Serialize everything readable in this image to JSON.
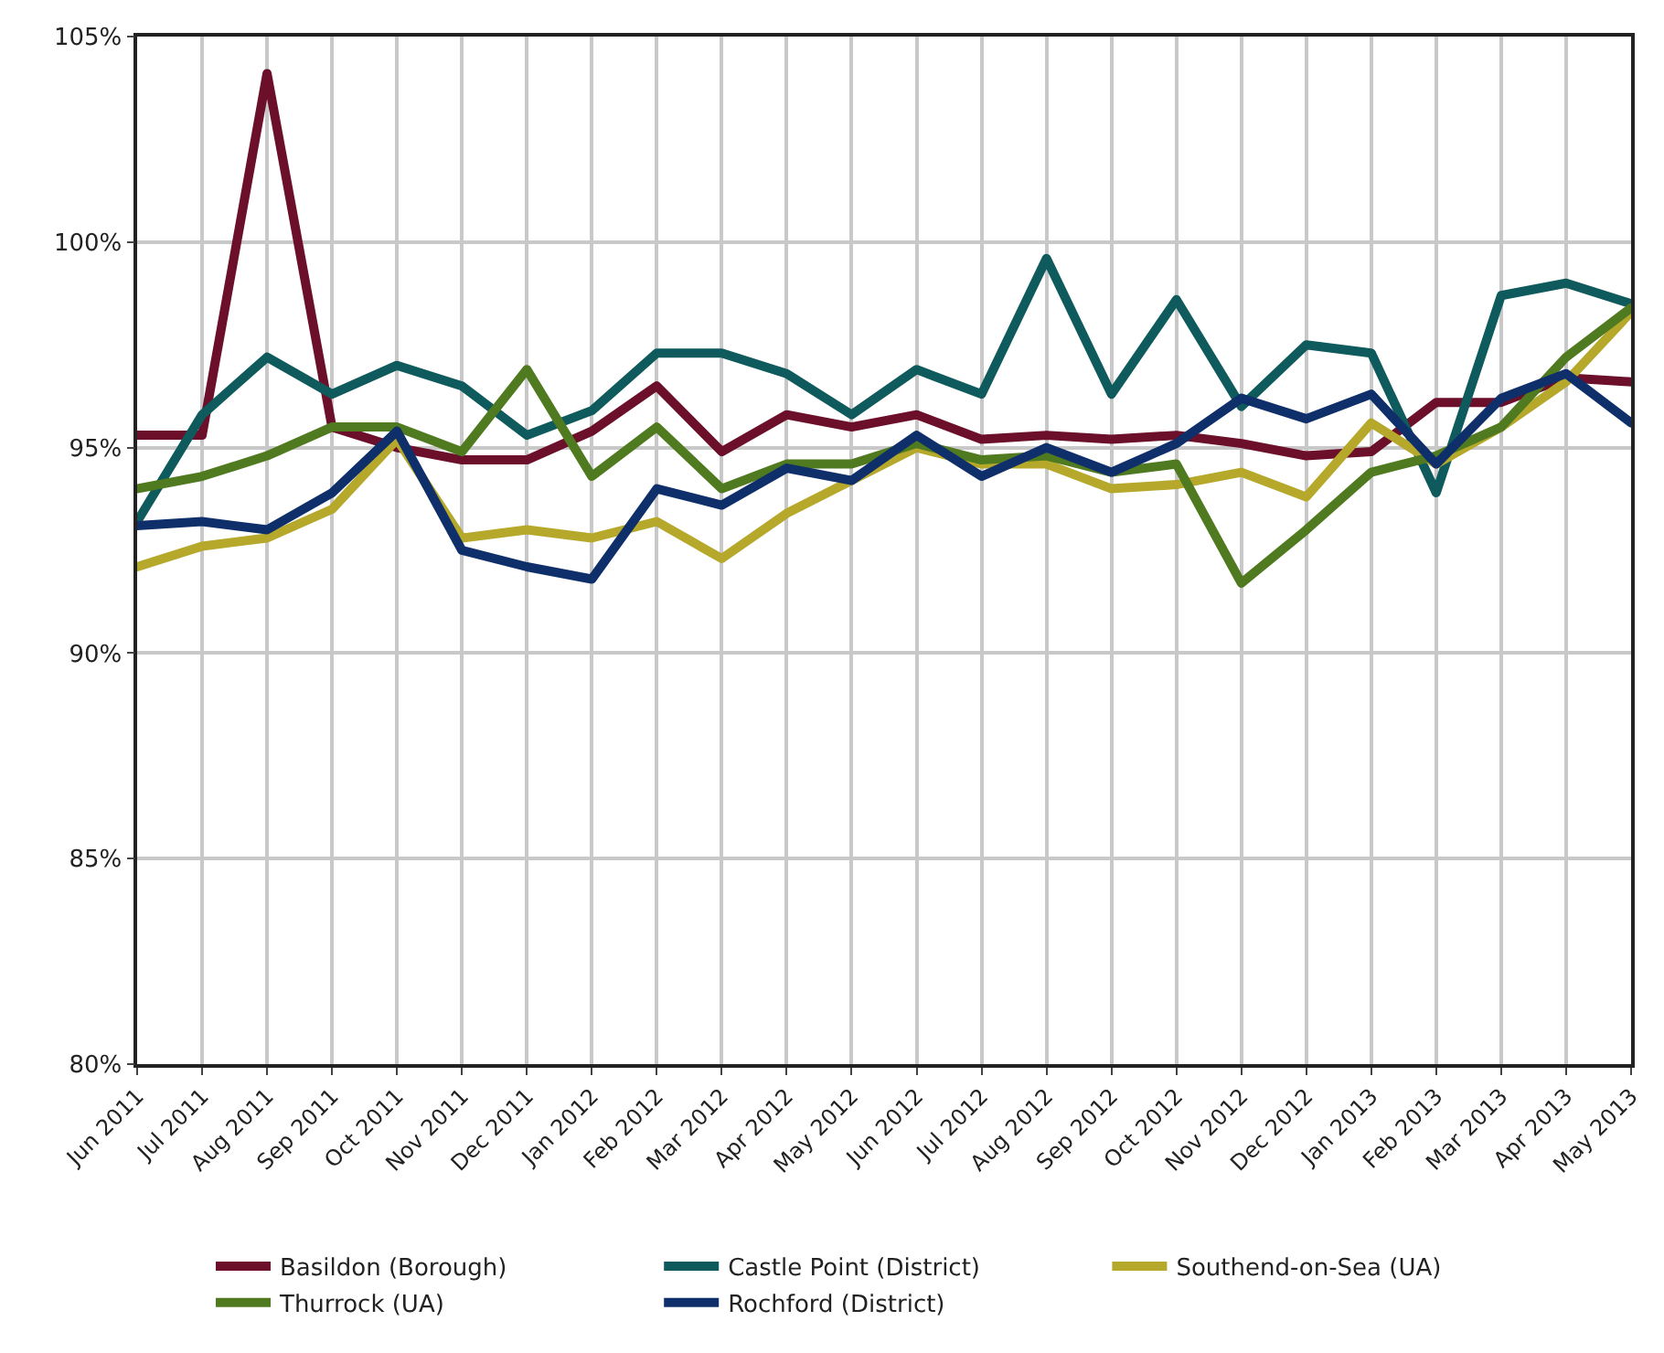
{
  "chart_data": {
    "type": "line",
    "categories": [
      "Jun 2011",
      "Jul 2011",
      "Aug 2011",
      "Sep 2011",
      "Oct 2011",
      "Nov 2011",
      "Dec 2011",
      "Jan 2012",
      "Feb 2012",
      "Mar 2012",
      "Apr 2012",
      "May 2012",
      "Jun 2012",
      "Jul 2012",
      "Aug 2012",
      "Sep 2012",
      "Oct 2012",
      "Nov 2012",
      "Dec 2012",
      "Jan 2013",
      "Feb 2013",
      "Mar 2013",
      "Apr 2013",
      "May 2013"
    ],
    "series": [
      {
        "name": "Basildon (Borough)",
        "color": "#6b0f2a",
        "values": [
          95.3,
          95.3,
          104.1,
          95.5,
          95.0,
          94.7,
          94.7,
          95.4,
          96.5,
          94.9,
          95.8,
          95.5,
          95.8,
          95.2,
          95.3,
          95.2,
          95.3,
          95.1,
          94.8,
          94.9,
          96.1,
          96.1,
          96.7,
          96.6
        ]
      },
      {
        "name": "Castle Point (District)",
        "color": "#0e5a5c",
        "values": [
          93.2,
          95.8,
          97.2,
          96.3,
          97.0,
          96.5,
          95.3,
          95.9,
          97.3,
          97.3,
          96.8,
          95.8,
          96.9,
          96.3,
          99.6,
          96.3,
          98.6,
          96.0,
          97.5,
          97.3,
          93.9,
          98.7,
          99.0,
          98.5
        ]
      },
      {
        "name": "Southend-on-Sea (UA)",
        "color": "#b5a82a",
        "values": [
          92.1,
          92.6,
          92.8,
          93.5,
          95.2,
          92.8,
          93.0,
          92.8,
          93.2,
          92.3,
          93.4,
          94.2,
          95.0,
          94.6,
          94.6,
          94.0,
          94.1,
          94.4,
          93.8,
          95.6,
          94.6,
          95.5,
          96.6,
          98.3
        ]
      },
      {
        "name": "Thurrock (UA)",
        "color": "#4f7a1f",
        "values": [
          94.0,
          94.3,
          94.8,
          95.5,
          95.5,
          94.9,
          96.9,
          94.3,
          95.5,
          94.0,
          94.6,
          94.6,
          95.1,
          94.7,
          94.8,
          94.4,
          94.6,
          91.7,
          93.0,
          94.4,
          94.8,
          95.5,
          97.2,
          98.4
        ]
      },
      {
        "name": "Rochford (District)",
        "color": "#0f2f6b",
        "values": [
          93.1,
          93.2,
          93.0,
          93.9,
          95.4,
          92.5,
          92.1,
          91.8,
          94.0,
          93.6,
          94.5,
          94.2,
          95.3,
          94.3,
          95.0,
          94.4,
          95.1,
          96.2,
          95.7,
          96.3,
          94.6,
          96.2,
          96.8,
          95.6
        ]
      }
    ],
    "ylim": [
      80,
      105
    ],
    "yticks": [
      {
        "value": 80,
        "label": "80%"
      },
      {
        "value": 85,
        "label": "85%"
      },
      {
        "value": 90,
        "label": "90%"
      },
      {
        "value": 95,
        "label": "95%"
      },
      {
        "value": 100,
        "label": "100%"
      },
      {
        "value": 105,
        "label": "105%"
      }
    ],
    "grid": true,
    "legend": "bottom",
    "marker": "none",
    "line_style": "solid"
  }
}
